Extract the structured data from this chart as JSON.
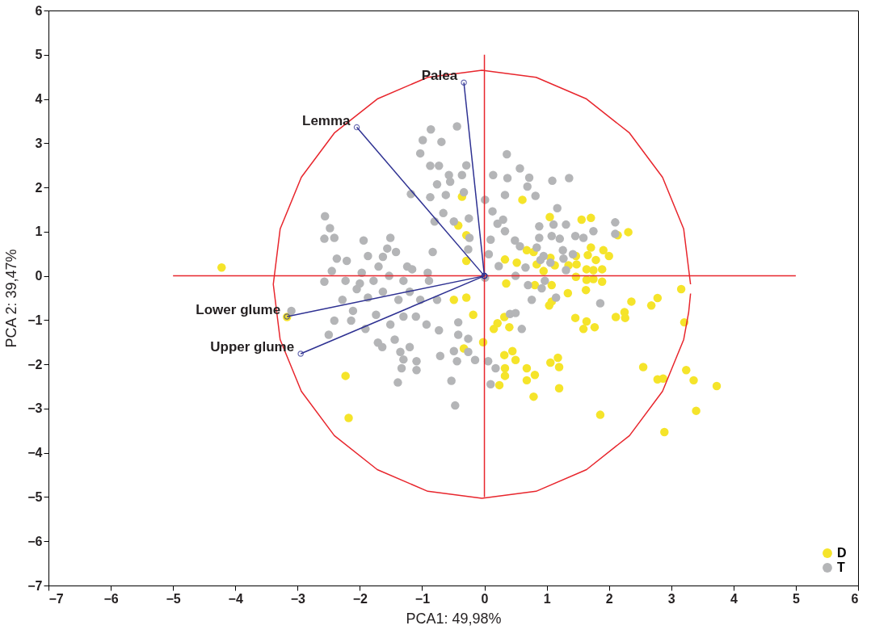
{
  "chart_data": {
    "type": "scatter",
    "xlabel": "PCA1: 49,98%",
    "ylabel": "PCA 2: 39,47%",
    "xlim": [
      -7,
      6
    ],
    "xticks": [
      -7,
      -6,
      -5,
      -4,
      -3,
      -2,
      -1,
      0,
      1,
      2,
      3,
      4,
      5,
      6
    ],
    "ylim": [
      -7,
      6
    ],
    "yticks": [
      -7,
      -6,
      -5,
      -4,
      -3,
      -2,
      -1,
      0,
      1,
      2,
      3,
      4,
      5,
      6
    ],
    "grid": false,
    "legend": "bottom right",
    "marker": "circle",
    "annotations": [
      {
        "text": "Lemma",
        "x": -2.05,
        "y": 3.36
      },
      {
        "text": "Palea",
        "x": -0.33,
        "y": 4.37
      },
      {
        "text": "Lower glume",
        "x": -3.17,
        "y": -0.92
      },
      {
        "text": "Upper glume",
        "x": -2.95,
        "y": -1.76
      }
    ],
    "series": [
      {
        "name": "D",
        "color": "#f5e42a",
        "x": [
          0.61,
          1.05,
          1.56,
          1.71,
          2.31,
          2.14,
          0.68,
          0.79,
          1.71,
          1.91,
          2.0,
          1.66,
          1.47,
          0.33,
          0.52,
          1.06,
          1.35,
          1.48,
          1.79,
          1.89,
          1.75,
          1.64,
          0.95,
          0.84,
          1.13,
          1.47,
          1.64,
          1.89,
          1.75,
          1.63,
          1.08,
          0.81,
          0.35,
          1.34,
          3.16,
          2.78,
          2.68,
          2.36,
          2.25,
          2.11,
          2.26,
          1.46,
          1.64,
          1.59,
          1.77,
          1.04,
          1.08,
          3.21,
          0.32,
          0.21,
          0.15,
          0.4,
          -0.02,
          0.32,
          0.45,
          0.5,
          0.33,
          0.33,
          0.24,
          0.68,
          0.81,
          0.68,
          0.79,
          1.06,
          1.18,
          1.2,
          1.2,
          1.86,
          2.55,
          2.78,
          2.87,
          3.24,
          3.36,
          3.73,
          3.4,
          2.89,
          -4.22,
          -3.17,
          -2.23,
          -2.18,
          -0.36,
          -0.42,
          -0.29,
          -0.29,
          -0.49,
          -0.29,
          -0.18,
          -0.33
        ],
        "values": [
          1.72,
          1.33,
          1.27,
          1.31,
          0.99,
          0.92,
          0.58,
          0.54,
          0.64,
          0.58,
          0.45,
          0.47,
          0.45,
          0.37,
          0.3,
          0.41,
          0.24,
          0.26,
          0.36,
          0.15,
          0.13,
          0.15,
          0.11,
          0.26,
          0.24,
          -0.02,
          -0.09,
          -0.13,
          -0.07,
          -0.32,
          -0.21,
          -0.21,
          -0.17,
          -0.39,
          -0.3,
          -0.5,
          -0.67,
          -0.58,
          -0.82,
          -0.93,
          -0.95,
          -0.95,
          -1.03,
          -1.2,
          -1.16,
          -0.67,
          -0.58,
          -1.05,
          -0.93,
          -1.07,
          -1.2,
          -1.16,
          -1.5,
          -1.79,
          -1.7,
          -1.9,
          -2.09,
          -2.26,
          -2.47,
          -2.09,
          -2.24,
          -2.36,
          -2.73,
          -1.96,
          -1.85,
          -2.06,
          -2.54,
          -3.14,
          -2.06,
          -2.34,
          -2.32,
          -2.13,
          -2.36,
          -2.49,
          -3.05,
          -3.53,
          0.19,
          -0.93,
          -2.26,
          -3.21,
          1.79,
          1.14,
          0.92,
          0.34,
          -0.54,
          -0.49,
          -0.88,
          -1.64
        ]
      },
      {
        "name": "T",
        "color": "#b4b5b7",
        "x": [
          -0.44,
          -0.86,
          -0.99,
          -0.69,
          -1.03,
          -0.87,
          -0.73,
          -0.29,
          -0.57,
          -0.36,
          -0.76,
          -0.55,
          -1.18,
          -0.87,
          -0.62,
          -0.33,
          -0.66,
          -0.8,
          -0.49,
          -0.25,
          -0.24,
          -0.83,
          -0.26,
          -2.56,
          -2.48,
          -2.57,
          -2.41,
          -1.94,
          -1.51,
          -1.56,
          -1.42,
          -2.37,
          -2.21,
          -1.87,
          -1.63,
          -1.24,
          -0.91,
          -2.45,
          -2.57,
          -2.23,
          -2.0,
          -1.78,
          -1.97,
          -1.7,
          -1.53,
          -1.3,
          -1.16,
          -0.89,
          -2.28,
          -2.05,
          -1.87,
          -1.63,
          -1.38,
          -1.2,
          -1.03,
          -0.76,
          -3.1,
          -2.41,
          -2.11,
          -2.14,
          -1.91,
          -1.74,
          -1.51,
          -1.3,
          -1.1,
          -0.93,
          -0.73,
          -2.5,
          -1.71,
          -1.64,
          -1.44,
          -1.2,
          -1.35,
          -1.3,
          -1.09,
          -1.33,
          -1.09,
          -0.71,
          -0.49,
          -0.42,
          -0.42,
          -0.26,
          -0.44,
          -0.26,
          -0.15,
          -1.39,
          -0.53,
          -0.47,
          0.36,
          0.57,
          0.14,
          0.37,
          0.72,
          1.09,
          1.36,
          0.69,
          0.33,
          0.82,
          0.01,
          1.17,
          0.13,
          0.3,
          0.21,
          0.88,
          1.11,
          1.31,
          2.1,
          2.1,
          1.75,
          0.33,
          0.88,
          1.08,
          1.21,
          1.46,
          1.59,
          0.1,
          0.49,
          0.57,
          0.84,
          1.26,
          1.42,
          0.95,
          0.9,
          1.27,
          0.07,
          1.06,
          0.23,
          0.66,
          1.31,
          0.5,
          0.01,
          0.7,
          0.97,
          0.92,
          0.76,
          1.15,
          1.86,
          0.41,
          0.5,
          0.6,
          0.06,
          0.18,
          0.1
        ],
        "values": [
          3.38,
          3.31,
          3.07,
          3.03,
          2.77,
          2.49,
          2.49,
          2.5,
          2.28,
          2.28,
          2.07,
          2.13,
          1.85,
          1.78,
          1.83,
          1.89,
          1.42,
          1.23,
          1.23,
          1.3,
          0.86,
          0.54,
          0.6,
          1.35,
          1.08,
          0.84,
          0.86,
          0.8,
          0.86,
          0.62,
          0.54,
          0.39,
          0.34,
          0.45,
          0.43,
          0.21,
          0.07,
          0.11,
          -0.13,
          -0.11,
          -0.17,
          -0.11,
          0.07,
          0.21,
          0.0,
          -0.11,
          0.15,
          -0.11,
          -0.54,
          -0.3,
          -0.49,
          -0.36,
          -0.54,
          -0.36,
          -0.54,
          -0.54,
          -0.79,
          -1.01,
          -0.79,
          -1.01,
          -1.2,
          -0.88,
          -1.1,
          -0.92,
          -0.92,
          -1.1,
          -1.23,
          -1.33,
          -1.51,
          -1.61,
          -1.44,
          -1.61,
          -1.72,
          -1.89,
          -1.93,
          -2.09,
          -2.13,
          -1.81,
          -1.7,
          -1.05,
          -1.33,
          -1.42,
          -1.93,
          -1.72,
          -1.9,
          -2.41,
          -2.37,
          -2.93,
          2.75,
          2.43,
          2.28,
          2.21,
          2.22,
          2.15,
          2.21,
          2.02,
          1.83,
          1.81,
          1.72,
          1.53,
          1.46,
          1.27,
          1.18,
          1.12,
          1.16,
          1.16,
          1.21,
          0.95,
          1.01,
          1.01,
          0.86,
          0.9,
          0.84,
          0.9,
          0.86,
          0.82,
          0.8,
          0.67,
          0.64,
          0.58,
          0.49,
          0.45,
          0.36,
          0.39,
          0.49,
          0.3,
          0.22,
          0.19,
          0.13,
          0.0,
          -0.04,
          -0.21,
          -0.11,
          -0.28,
          -0.54,
          -0.49,
          -0.62,
          -0.86,
          -0.84,
          -1.2,
          -1.93,
          -2.09,
          -2.45
        ]
      },
      {
        "color": "#e8262d",
        "type": "line",
        "marker": "none",
        "x": [
          -5,
          5
        ],
        "values": [
          0,
          0
        ]
      },
      {
        "color": "#e8262d",
        "type": "line",
        "marker": "none",
        "x": [
          0,
          0
        ],
        "values": [
          -5,
          5
        ]
      },
      {
        "color": "#2e3192",
        "type": "line",
        "marker": "circle",
        "x": [
          0,
          -2.05
        ],
        "values": [
          0,
          3.36
        ]
      },
      {
        "color": "#2e3192",
        "type": "line",
        "marker": "circle",
        "x": [
          0,
          -0.33
        ],
        "values": [
          0,
          4.37
        ]
      },
      {
        "color": "#2e3192",
        "type": "line",
        "marker": "circle",
        "x": [
          0,
          -3.17
        ],
        "values": [
          0,
          -0.92
        ]
      },
      {
        "color": "#2e3192",
        "type": "line",
        "marker": "circle",
        "x": [
          0,
          -2.95
        ],
        "values": [
          0,
          -1.76
        ]
      },
      {
        "color": "#e8262d",
        "type": "line",
        "marker": "none",
        "x": [
          3.31,
          3.2,
          2.86,
          2.33,
          1.64,
          0.83,
          -0.04,
          -0.91,
          -1.72,
          -2.41,
          -2.94,
          -3.28,
          -3.39,
          -3.28,
          -2.94,
          -2.41,
          -1.72,
          -0.91,
          -0.04,
          0.83,
          1.64,
          2.33,
          2.86,
          3.2,
          3.28,
          3.31
        ],
        "values": [
          -0.19,
          1.06,
          2.23,
          3.23,
          4.0,
          4.49,
          4.65,
          4.49,
          4.0,
          3.23,
          2.23,
          1.06,
          -0.19,
          -1.44,
          -2.61,
          -3.61,
          -4.38,
          -4.87,
          -5.03,
          -4.87,
          -4.38,
          -3.61,
          -2.61,
          -1.44,
          -0.82,
          -0.4
        ]
      }
    ]
  }
}
